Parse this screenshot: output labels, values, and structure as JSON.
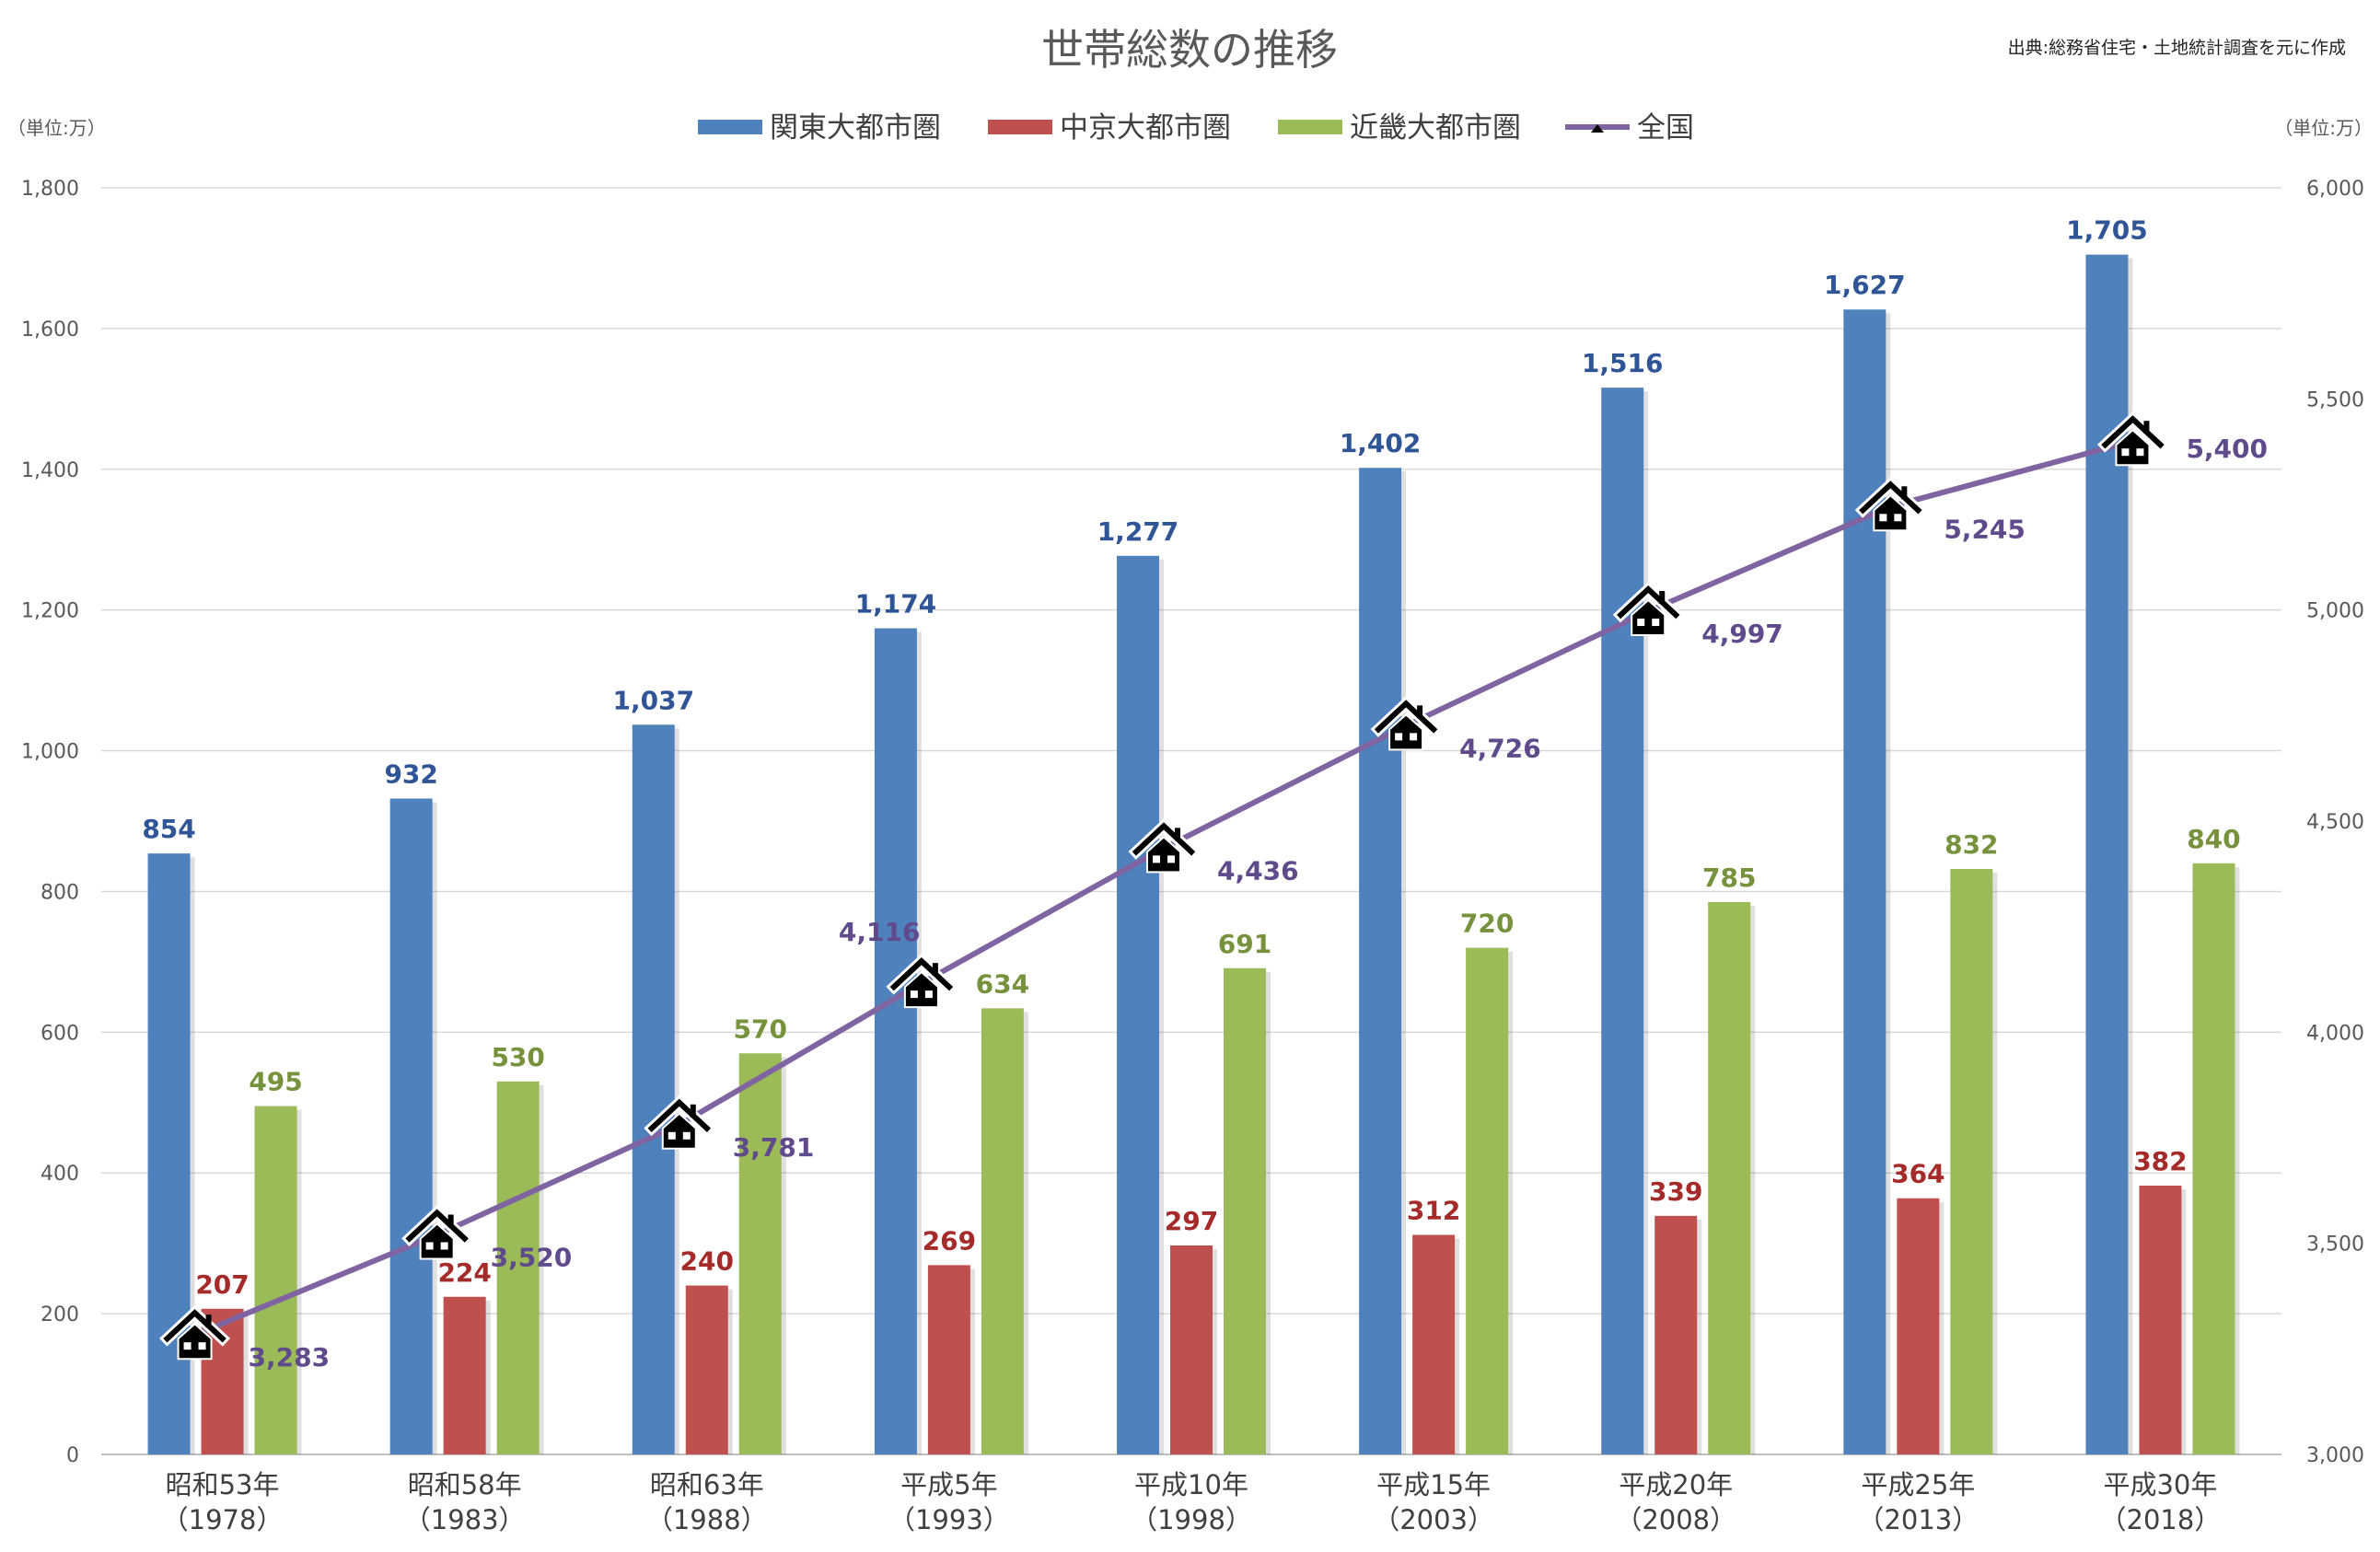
{
  "chart_data": {
    "type": "bar",
    "title": "世帯総数の推移",
    "source": "出典:総務省住宅・土地統計調査を元に作成",
    "unit_left": "（単位:万）",
    "unit_right": "（単位:万）",
    "categories": [
      {
        "line1": "昭和53年",
        "line2": "（1978）"
      },
      {
        "line1": "昭和58年",
        "line2": "（1983）"
      },
      {
        "line1": "昭和63年",
        "line2": "（1988）"
      },
      {
        "line1": "平成5年",
        "line2": "（1993）"
      },
      {
        "line1": "平成10年",
        "line2": "（1998）"
      },
      {
        "line1": "平成15年",
        "line2": "（2003）"
      },
      {
        "line1": "平成20年",
        "line2": "（2008）"
      },
      {
        "line1": "平成25年",
        "line2": "（2013）"
      },
      {
        "line1": "平成30年",
        "line2": "（2018）"
      }
    ],
    "y_left": {
      "min": 0,
      "max": 1800,
      "ticks": [
        "0",
        "200",
        "400",
        "600",
        "800",
        "1,000",
        "1,200",
        "1,400",
        "1,600",
        "1,800"
      ]
    },
    "y_right": {
      "min": 3000,
      "max": 6000,
      "ticks": [
        "3,000",
        "3,500",
        "4,000",
        "4,500",
        "5,000",
        "5,500",
        "6,000"
      ]
    },
    "grid": true,
    "legend_position": "top",
    "series": [
      {
        "name": "関東大都市圏",
        "kind": "bar",
        "axis": "left",
        "color": "#4f81bd",
        "label_color": "#2f5597",
        "values": [
          854,
          932,
          1037,
          1174,
          1277,
          1402,
          1516,
          1627,
          1705
        ],
        "labels": [
          "854",
          "932",
          "1,037",
          "1,174",
          "1,277",
          "1,402",
          "1,516",
          "1,627",
          "1,705"
        ]
      },
      {
        "name": "中京大都市圏",
        "kind": "bar",
        "axis": "left",
        "color": "#c0504d",
        "label_color": "#a52a2a",
        "values": [
          207,
          224,
          240,
          269,
          297,
          312,
          339,
          364,
          382
        ],
        "labels": [
          "207",
          "224",
          "240",
          "269",
          "297",
          "312",
          "339",
          "364",
          "382"
        ]
      },
      {
        "name": "近畿大都市圏",
        "kind": "bar",
        "axis": "left",
        "color": "#9bbb59",
        "label_color": "#76923c",
        "values": [
          495,
          530,
          570,
          634,
          691,
          720,
          785,
          832,
          840
        ],
        "labels": [
          "495",
          "530",
          "570",
          "634",
          "691",
          "720",
          "785",
          "832",
          "840"
        ]
      },
      {
        "name": "全国",
        "kind": "line",
        "axis": "right",
        "color": "#8064a2",
        "label_color": "#5f4a8b",
        "marker": "house-icon",
        "values": [
          3283,
          3520,
          3781,
          4116,
          4436,
          4726,
          4997,
          5245,
          5400
        ],
        "labels": [
          "3,283",
          "3,520",
          "3,781",
          "4,116",
          "4,436",
          "4,726",
          "4,997",
          "5,245",
          "5,400"
        ]
      }
    ]
  }
}
